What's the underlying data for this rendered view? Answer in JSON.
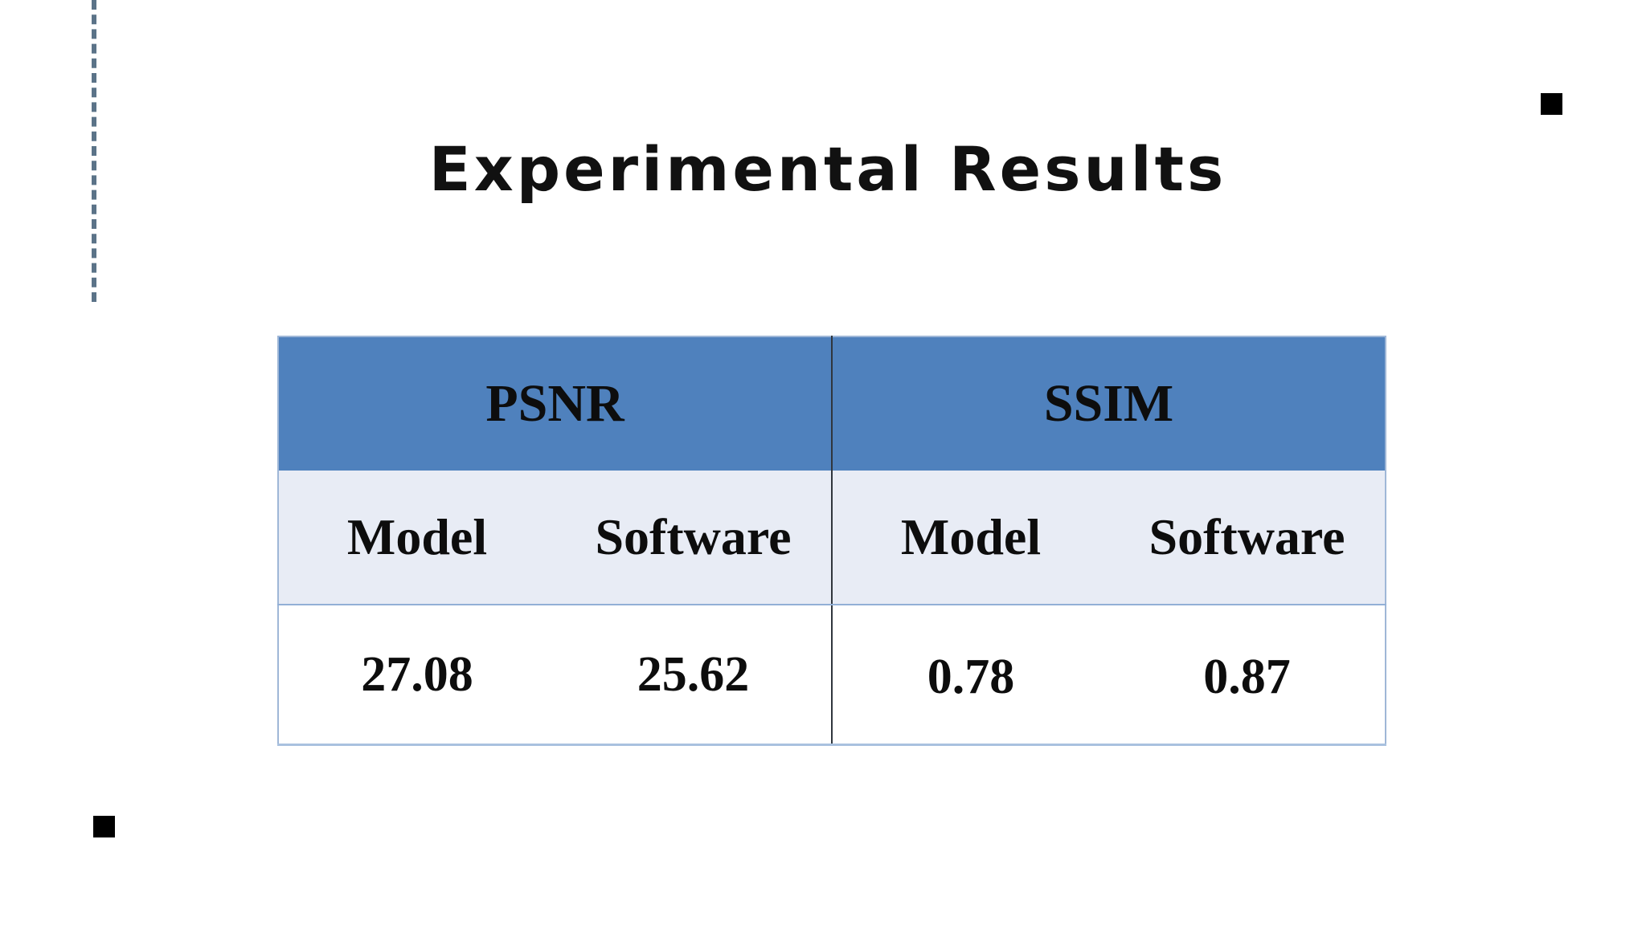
{
  "slide": {
    "title": "Experimental Results"
  },
  "table": {
    "groups": [
      {
        "label": "PSNR",
        "columns": [
          "Model",
          "Software"
        ],
        "values": [
          "27.08",
          "25.62"
        ]
      },
      {
        "label": "SSIM",
        "columns": [
          "Model",
          "Software"
        ],
        "values": [
          "0.78",
          "0.87"
        ]
      }
    ]
  },
  "colors": {
    "header_fill": "#4f81bd",
    "subheader_fill": "#e8ecf5",
    "rule_color": "#5b7388"
  }
}
